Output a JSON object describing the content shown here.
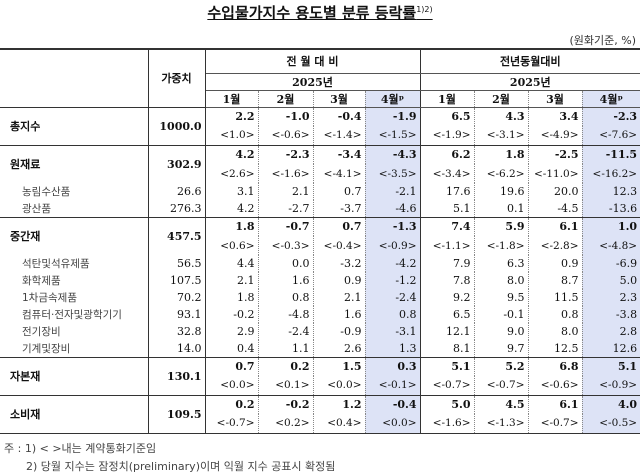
{
  "title": "수입물가지수 용도별 분류 등락률",
  "title_sup": "1)2)",
  "unit": "(원화기준, %)",
  "header": {
    "weight": "가중치",
    "group1": "전 월 대 비",
    "group2": "전년동월대비",
    "year1": "2025년",
    "year2": "2025년",
    "months": [
      "1월",
      "2월",
      "3월",
      "4월ᵖ",
      "1월",
      "2월",
      "3월",
      "4월ᵖ"
    ]
  },
  "highlight_color": "#dde3f6",
  "rows": [
    {
      "type": "main",
      "label": "총지수",
      "weight": "1000.0",
      "values": [
        "2.2",
        "-1.0",
        "-0.4",
        "-1.9",
        "6.5",
        "4.3",
        "3.4",
        "-2.3"
      ],
      "contract": [
        "<1.0>",
        "<-0.6>",
        "<-1.4>",
        "<-1.5>",
        "<-1.9>",
        "<-3.1>",
        "<-4.9>",
        "<-7.6>"
      ]
    },
    {
      "type": "main",
      "label": "원재료",
      "weight": "302.9",
      "values": [
        "4.2",
        "-2.3",
        "-3.4",
        "-4.3",
        "6.2",
        "1.8",
        "-2.5",
        "-11.5"
      ],
      "contract": [
        "<2.6>",
        "<-1.6>",
        "<-4.1>",
        "<-3.5>",
        "<-3.4>",
        "<-6.2>",
        "<-11.0>",
        "<-16.2>"
      ]
    },
    {
      "type": "sub",
      "label": "농림수산품",
      "weight": "26.6",
      "values": [
        "3.1",
        "2.1",
        "0.7",
        "-2.1",
        "17.6",
        "19.6",
        "20.0",
        "12.3"
      ]
    },
    {
      "type": "sub",
      "label": "광산품",
      "weight": "276.3",
      "values": [
        "4.2",
        "-2.7",
        "-3.7",
        "-4.6",
        "5.1",
        "0.1",
        "-4.5",
        "-13.6"
      ]
    },
    {
      "type": "main",
      "label": "중간재",
      "weight": "457.5",
      "values": [
        "1.8",
        "-0.7",
        "0.7",
        "-1.3",
        "7.4",
        "5.9",
        "6.1",
        "1.0"
      ],
      "contract": [
        "<0.6>",
        "<-0.3>",
        "<-0.4>",
        "<-0.9>",
        "<-1.1>",
        "<-1.8>",
        "<-2.8>",
        "<-4.8>"
      ]
    },
    {
      "type": "sub",
      "label": "석탄및석유제품",
      "weight": "56.5",
      "values": [
        "4.4",
        "0.0",
        "-3.2",
        "-4.2",
        "7.9",
        "6.3",
        "0.9",
        "-6.9"
      ]
    },
    {
      "type": "sub",
      "label": "화학제품",
      "weight": "107.5",
      "values": [
        "2.1",
        "1.6",
        "0.9",
        "-1.2",
        "7.8",
        "8.0",
        "8.7",
        "5.0"
      ]
    },
    {
      "type": "sub",
      "label": "1차금속제품",
      "weight": "70.2",
      "values": [
        "1.8",
        "0.8",
        "2.1",
        "-2.4",
        "9.2",
        "9.5",
        "11.5",
        "2.3"
      ]
    },
    {
      "type": "sub",
      "label": "컴퓨터·전자및광학기기",
      "weight": "93.1",
      "values": [
        "-0.2",
        "-4.8",
        "1.6",
        "0.8",
        "6.5",
        "-0.1",
        "0.8",
        "-3.8"
      ]
    },
    {
      "type": "sub",
      "label": "전기장비",
      "weight": "32.8",
      "values": [
        "2.9",
        "-2.4",
        "-0.9",
        "-3.1",
        "12.1",
        "9.0",
        "8.0",
        "2.8"
      ]
    },
    {
      "type": "sub",
      "label": "기계및장비",
      "weight": "14.0",
      "values": [
        "0.4",
        "1.1",
        "2.6",
        "1.3",
        "8.1",
        "9.7",
        "12.5",
        "12.6"
      ]
    },
    {
      "type": "main",
      "label": "자본재",
      "weight": "130.1",
      "values": [
        "0.7",
        "0.2",
        "1.5",
        "0.3",
        "5.1",
        "5.2",
        "6.8",
        "5.1"
      ],
      "contract": [
        "<0.0>",
        "<0.1>",
        "<0.0>",
        "<-0.1>",
        "<-0.7>",
        "<-0.7>",
        "<-0.6>",
        "<-0.9>"
      ]
    },
    {
      "type": "main",
      "label": "소비재",
      "weight": "109.5",
      "values": [
        "0.2",
        "-0.2",
        "1.2",
        "-0.4",
        "5.0",
        "4.5",
        "6.1",
        "4.0"
      ],
      "contract": [
        "<-0.7>",
        "<0.2>",
        "<0.4>",
        "<0.0>",
        "<-1.6>",
        "<-1.3>",
        "<-0.7>",
        "<-0.5>"
      ]
    }
  ],
  "notes": [
    "주 : 1) < >내는 계약통화기준임",
    "2) 당월 지수는 잠정치(preliminary)이며 익월 지수 공표시 확정됨"
  ]
}
